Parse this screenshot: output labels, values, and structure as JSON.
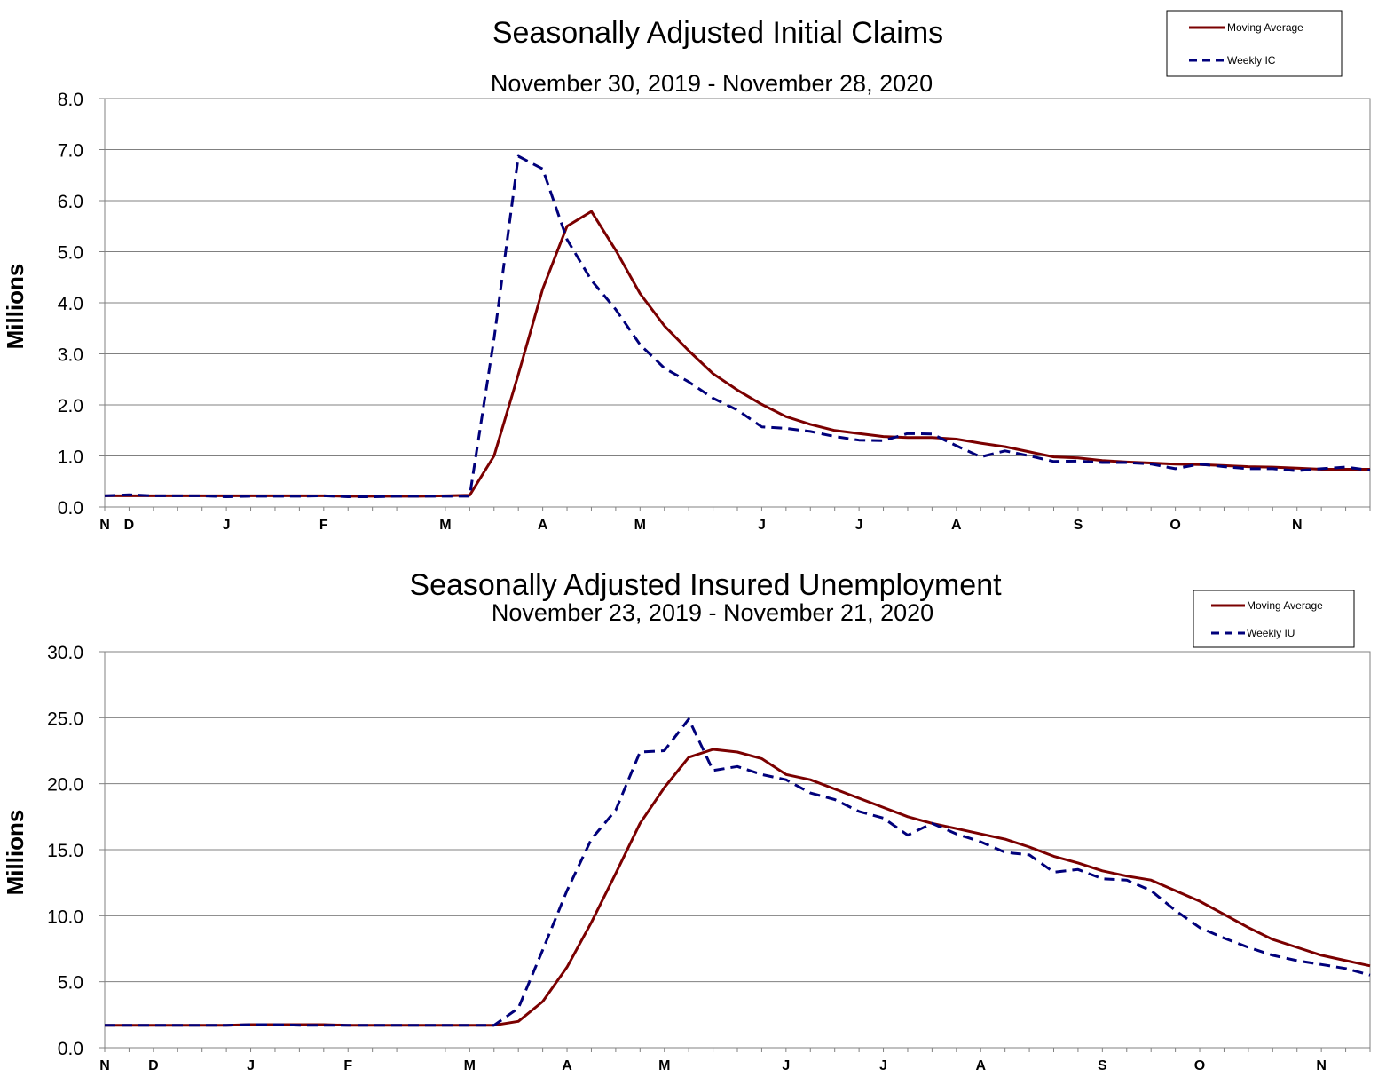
{
  "chart_data": [
    {
      "type": "line",
      "title": "Seasonally Adjusted Initial Claims",
      "subtitle": "November 30, 2019 - November 28, 2020",
      "ylabel": "Millions",
      "ylim": [
        0,
        8
      ],
      "yticks": [
        "0.0",
        "1.0",
        "2.0",
        "3.0",
        "4.0",
        "5.0",
        "6.0",
        "7.0",
        "8.0"
      ],
      "xticks": [
        {
          "label": "N",
          "week": 0
        },
        {
          "label": "D",
          "week": 1
        },
        {
          "label": "J",
          "week": 5
        },
        {
          "label": "F",
          "week": 9
        },
        {
          "label": "M",
          "week": 14
        },
        {
          "label": "A",
          "week": 18
        },
        {
          "label": "M",
          "week": 22
        },
        {
          "label": "J",
          "week": 27
        },
        {
          "label": "J",
          "week": 31
        },
        {
          "label": "A",
          "week": 35
        },
        {
          "label": "S",
          "week": 40
        },
        {
          "label": "O",
          "week": 44
        },
        {
          "label": "N",
          "week": 49
        }
      ],
      "weeks": 52,
      "grid": true,
      "legend_position": "top-right",
      "series": [
        {
          "name": "Moving Average",
          "color": "#7b0000",
          "style": "solid",
          "values": [
            0.22,
            0.22,
            0.22,
            0.22,
            0.22,
            0.22,
            0.22,
            0.22,
            0.22,
            0.22,
            0.21,
            0.21,
            0.21,
            0.21,
            0.22,
            0.23,
            1.0,
            2.6,
            4.27,
            5.5,
            5.79,
            5.03,
            4.18,
            3.55,
            3.06,
            2.61,
            2.29,
            2.01,
            1.77,
            1.62,
            1.5,
            1.44,
            1.38,
            1.36,
            1.36,
            1.33,
            1.25,
            1.18,
            1.08,
            0.98,
            0.96,
            0.91,
            0.88,
            0.86,
            0.84,
            0.83,
            0.81,
            0.79,
            0.78,
            0.76,
            0.74,
            0.74,
            0.74
          ]
        },
        {
          "name": "Weekly IC",
          "color": "#00007b",
          "style": "dashed",
          "values": [
            0.22,
            0.24,
            0.22,
            0.22,
            0.22,
            0.2,
            0.21,
            0.21,
            0.21,
            0.22,
            0.2,
            0.2,
            0.21,
            0.21,
            0.21,
            0.21,
            3.3,
            6.87,
            6.62,
            5.24,
            4.44,
            3.87,
            3.18,
            2.72,
            2.45,
            2.13,
            1.9,
            1.57,
            1.54,
            1.48,
            1.38,
            1.31,
            1.3,
            1.44,
            1.43,
            1.2,
            0.98,
            1.1,
            1.0,
            0.89,
            0.9,
            0.87,
            0.87,
            0.84,
            0.75,
            0.84,
            0.79,
            0.75,
            0.75,
            0.71,
            0.75,
            0.78,
            0.72
          ]
        }
      ]
    },
    {
      "type": "line",
      "title": "Seasonally Adjusted Insured Unemployment",
      "subtitle": "November 23, 2019 - November 21, 2020",
      "ylabel": "Millions",
      "ylim": [
        0,
        30
      ],
      "yticks": [
        "0.0",
        "5.0",
        "10.0",
        "15.0",
        "20.0",
        "25.0",
        "30.0"
      ],
      "xticks": [
        {
          "label": "N",
          "week": 0
        },
        {
          "label": "D",
          "week": 2
        },
        {
          "label": "J",
          "week": 6
        },
        {
          "label": "F",
          "week": 10
        },
        {
          "label": "M",
          "week": 15
        },
        {
          "label": "A",
          "week": 19
        },
        {
          "label": "M",
          "week": 23
        },
        {
          "label": "J",
          "week": 28
        },
        {
          "label": "J",
          "week": 32
        },
        {
          "label": "A",
          "week": 36
        },
        {
          "label": "S",
          "week": 41
        },
        {
          "label": "O",
          "week": 45
        },
        {
          "label": "N",
          "week": 50
        }
      ],
      "weeks": 52,
      "grid": true,
      "legend_position": "top-right",
      "series": [
        {
          "name": "Moving Average",
          "color": "#7b0000",
          "style": "solid",
          "values": [
            1.7,
            1.7,
            1.7,
            1.7,
            1.7,
            1.7,
            1.75,
            1.75,
            1.75,
            1.75,
            1.7,
            1.7,
            1.7,
            1.7,
            1.7,
            1.7,
            1.7,
            2.0,
            3.5,
            6.1,
            9.5,
            13.2,
            17.0,
            19.7,
            22.0,
            22.6,
            22.4,
            21.9,
            20.7,
            20.3,
            19.6,
            18.9,
            18.2,
            17.5,
            17.0,
            16.6,
            16.2,
            15.8,
            15.2,
            14.5,
            14.0,
            13.4,
            13.0,
            12.7,
            11.9,
            11.1,
            10.1,
            9.1,
            8.2,
            7.6,
            7.0,
            6.6,
            6.2
          ]
        },
        {
          "name": "Weekly IU",
          "color": "#00007b",
          "style": "dashed",
          "values": [
            1.7,
            1.7,
            1.7,
            1.7,
            1.7,
            1.7,
            1.75,
            1.75,
            1.7,
            1.7,
            1.7,
            1.7,
            1.7,
            1.7,
            1.7,
            1.7,
            1.7,
            3.0,
            7.4,
            11.9,
            15.8,
            18.0,
            22.4,
            22.5,
            24.9,
            21.0,
            21.3,
            20.7,
            20.3,
            19.3,
            18.8,
            17.9,
            17.4,
            16.1,
            17.0,
            16.2,
            15.6,
            14.8,
            14.6,
            13.3,
            13.5,
            12.8,
            12.7,
            11.9,
            10.4,
            9.1,
            8.3,
            7.6,
            7.0,
            6.6,
            6.3,
            6.0,
            5.5
          ]
        }
      ]
    }
  ]
}
